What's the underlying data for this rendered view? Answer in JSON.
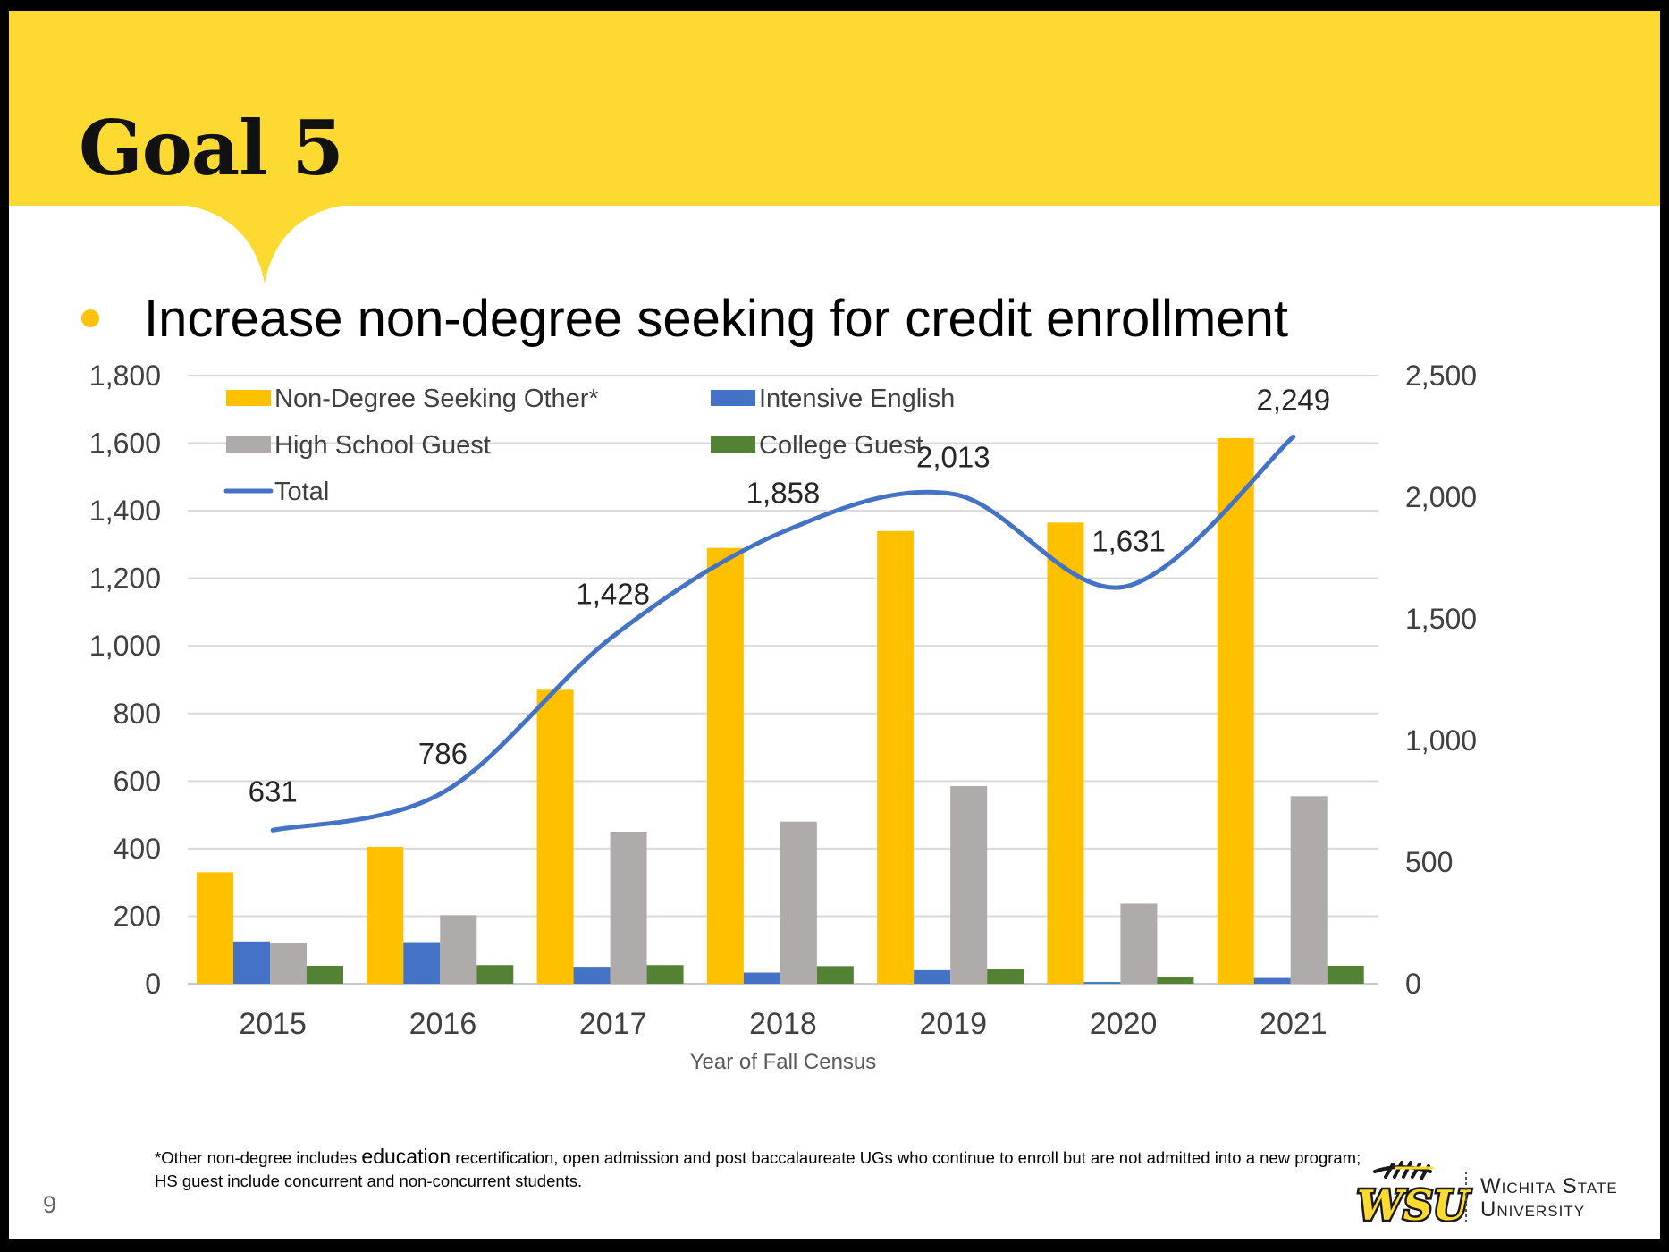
{
  "slide": {
    "title": "Goal 5",
    "bullet": "Increase non-degree seeking for credit enrollment",
    "footnote_part1": "*Other non-degree includes ",
    "footnote_emph": "education",
    "footnote_part2": " recertification, open admission and post baccalaureate UGs who continue to enroll but are not admitted into a new program; HS guest include concurrent and non-concurrent students.",
    "page_number": "9",
    "logo": {
      "monogram": "WSU",
      "line1": "Wichita State",
      "line2": "University"
    },
    "colors": {
      "header_band": "#fdda31",
      "bullet": "#fec10e"
    }
  },
  "chart_data": {
    "type": "bar",
    "categories": [
      "2015",
      "2016",
      "2017",
      "2018",
      "2019",
      "2020",
      "2021"
    ],
    "xlabel": "Year of Fall Census",
    "ylim": [
      0,
      1800
    ],
    "y_ticks": [
      "0",
      "200",
      "400",
      "600",
      "800",
      "1,000",
      "1,200",
      "1,400",
      "1,600",
      "1,800"
    ],
    "y2lim": [
      0,
      2500
    ],
    "y2_ticks": [
      "0",
      "500",
      "1,000",
      "1,500",
      "2,000",
      "2,500"
    ],
    "grid": true,
    "legend_position": "top-left, inside plot",
    "series": [
      {
        "name": "Non-Degree Seeking Other*",
        "type": "bar",
        "axis": "left",
        "color": "#ffc000",
        "values": [
          330,
          405,
          870,
          1290,
          1340,
          1365,
          1615
        ]
      },
      {
        "name": "Intensive English",
        "type": "bar",
        "axis": "left",
        "color": "#4472c4",
        "values": [
          125,
          123,
          50,
          33,
          40,
          5,
          17
        ]
      },
      {
        "name": "High School Guest",
        "type": "bar",
        "axis": "left",
        "color": "#afabab",
        "values": [
          120,
          203,
          450,
          480,
          585,
          237,
          555
        ]
      },
      {
        "name": "College Guest",
        "type": "bar",
        "axis": "left",
        "color": "#548235",
        "values": [
          53,
          55,
          55,
          52,
          43,
          20,
          53
        ]
      },
      {
        "name": "Total",
        "type": "line",
        "axis": "right",
        "color": "#4472c4",
        "values": [
          631,
          786,
          1428,
          1858,
          2013,
          1631,
          2249
        ],
        "labels": [
          "631",
          "786",
          "1,428",
          "1,858",
          "2,013",
          "1,631",
          "2,249"
        ]
      }
    ]
  }
}
